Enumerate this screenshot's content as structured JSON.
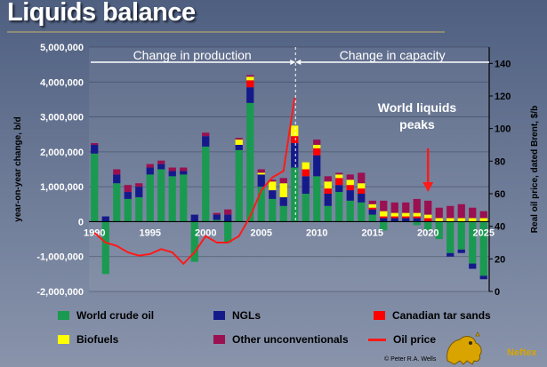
{
  "title": "Liquids balance",
  "copyright": "© Peter R.A. Wells",
  "logo_text": "Neftex",
  "colors": {
    "crude": "#1a9a50",
    "ngl": "#151a8a",
    "tar": "#ff0000",
    "bio": "#ffff00",
    "other": "#9a1050",
    "oil": "#ff1a1a"
  },
  "chart_data": {
    "type": "bar",
    "stacked": true,
    "title": "Liquids balance",
    "ylabel": "year-on-year change, b/d",
    "y2label": "Real oil price, dated Brent, $/b",
    "ylim": [
      -2000000,
      5000000
    ],
    "y2lim": [
      0,
      150
    ],
    "y_ticks": [
      "5,000,000",
      "4,000,000",
      "3,000,000",
      "2,000,000",
      "1,000,000",
      "0",
      "-1,000,000",
      "-2,000,000"
    ],
    "y2_ticks": [
      "140",
      "120",
      "100",
      "80",
      "60",
      "40",
      "20",
      "0"
    ],
    "x_ticks": [
      "1990",
      "1995",
      "2000",
      "2005",
      "2010",
      "2015",
      "2020",
      "2025"
    ],
    "x": [
      1990,
      1991,
      1992,
      1993,
      1994,
      1995,
      1996,
      1997,
      1998,
      1999,
      2000,
      2001,
      2002,
      2003,
      2004,
      2005,
      2006,
      2007,
      2008,
      2009,
      2010,
      2011,
      2012,
      2013,
      2014,
      2015,
      2016,
      2017,
      2018,
      2019,
      2020,
      2021,
      2022,
      2023,
      2024,
      2025
    ],
    "series": [
      {
        "name": "World crude oil",
        "key": "crude",
        "values": [
          1950000,
          -1500000,
          1100000,
          650000,
          700000,
          1350000,
          1500000,
          1300000,
          1350000,
          -1150000,
          2150000,
          50000,
          -600000,
          2050000,
          3400000,
          1000000,
          650000,
          450000,
          1550000,
          800000,
          1300000,
          450000,
          850000,
          600000,
          550000,
          200000,
          -250000,
          0,
          0,
          -100000,
          -250000,
          -500000,
          -900000,
          -800000,
          -1200000,
          -1550000
        ]
      },
      {
        "name": "NGLs",
        "key": "ngl",
        "values": [
          250000,
          150000,
          250000,
          200000,
          300000,
          200000,
          150000,
          150000,
          100000,
          200000,
          300000,
          150000,
          200000,
          150000,
          450000,
          350000,
          250000,
          250000,
          700000,
          500000,
          600000,
          350000,
          200000,
          300000,
          250000,
          150000,
          100000,
          100000,
          100000,
          100000,
          0,
          0,
          -100000,
          -100000,
          -150000,
          -100000
        ]
      },
      {
        "name": "Canadian tar sands",
        "key": "tar",
        "values": [
          0,
          0,
          0,
          0,
          0,
          0,
          0,
          0,
          0,
          0,
          0,
          0,
          0,
          0,
          200000,
          0,
          0,
          0,
          200000,
          200000,
          200000,
          150000,
          200000,
          150000,
          150000,
          50000,
          50000,
          50000,
          50000,
          50000,
          100000,
          0,
          0,
          0,
          0,
          0
        ]
      },
      {
        "name": "Biofuels",
        "key": "bio",
        "values": [
          0,
          0,
          0,
          0,
          0,
          0,
          0,
          0,
          0,
          0,
          0,
          0,
          0,
          150000,
          100000,
          50000,
          250000,
          400000,
          300000,
          200000,
          100000,
          200000,
          100000,
          150000,
          150000,
          100000,
          150000,
          100000,
          100000,
          100000,
          100000,
          100000,
          100000,
          100000,
          100000,
          100000
        ]
      },
      {
        "name": "Other unconventionals",
        "key": "other",
        "values": [
          50000,
          0,
          150000,
          200000,
          100000,
          100000,
          100000,
          100000,
          100000,
          0,
          100000,
          50000,
          150000,
          50000,
          50000,
          100000,
          50000,
          150000,
          0,
          0,
          150000,
          150000,
          50000,
          150000,
          300000,
          100000,
          300000,
          300000,
          300000,
          400000,
          400000,
          300000,
          350000,
          400000,
          300000,
          200000
        ]
      }
    ],
    "oil_price": {
      "name": "Oil price",
      "x": [
        1990,
        1991,
        1992,
        1993,
        1994,
        1995,
        1996,
        1997,
        1998,
        1999,
        2000,
        2001,
        2002,
        2003,
        2004,
        2005,
        2006,
        2007,
        2008
      ],
      "values": [
        36,
        30,
        28,
        24,
        22,
        23,
        26,
        24,
        17,
        24,
        34,
        30,
        30,
        34,
        46,
        62,
        70,
        74,
        119
      ]
    },
    "annotations": {
      "change_production": "Change in production",
      "change_capacity": "Change in capacity",
      "peaks_line1": "World liquids",
      "peaks_line2": "peaks",
      "peak_year": 2020
    }
  },
  "legend": [
    {
      "label": "World crude oil",
      "key": "crude"
    },
    {
      "label": "NGLs",
      "key": "ngl"
    },
    {
      "label": "Canadian tar sands",
      "key": "tar"
    },
    {
      "label": "Biofuels",
      "key": "bio"
    },
    {
      "label": "Other unconventionals",
      "key": "other"
    },
    {
      "label": "Oil price",
      "key": "oil"
    }
  ]
}
